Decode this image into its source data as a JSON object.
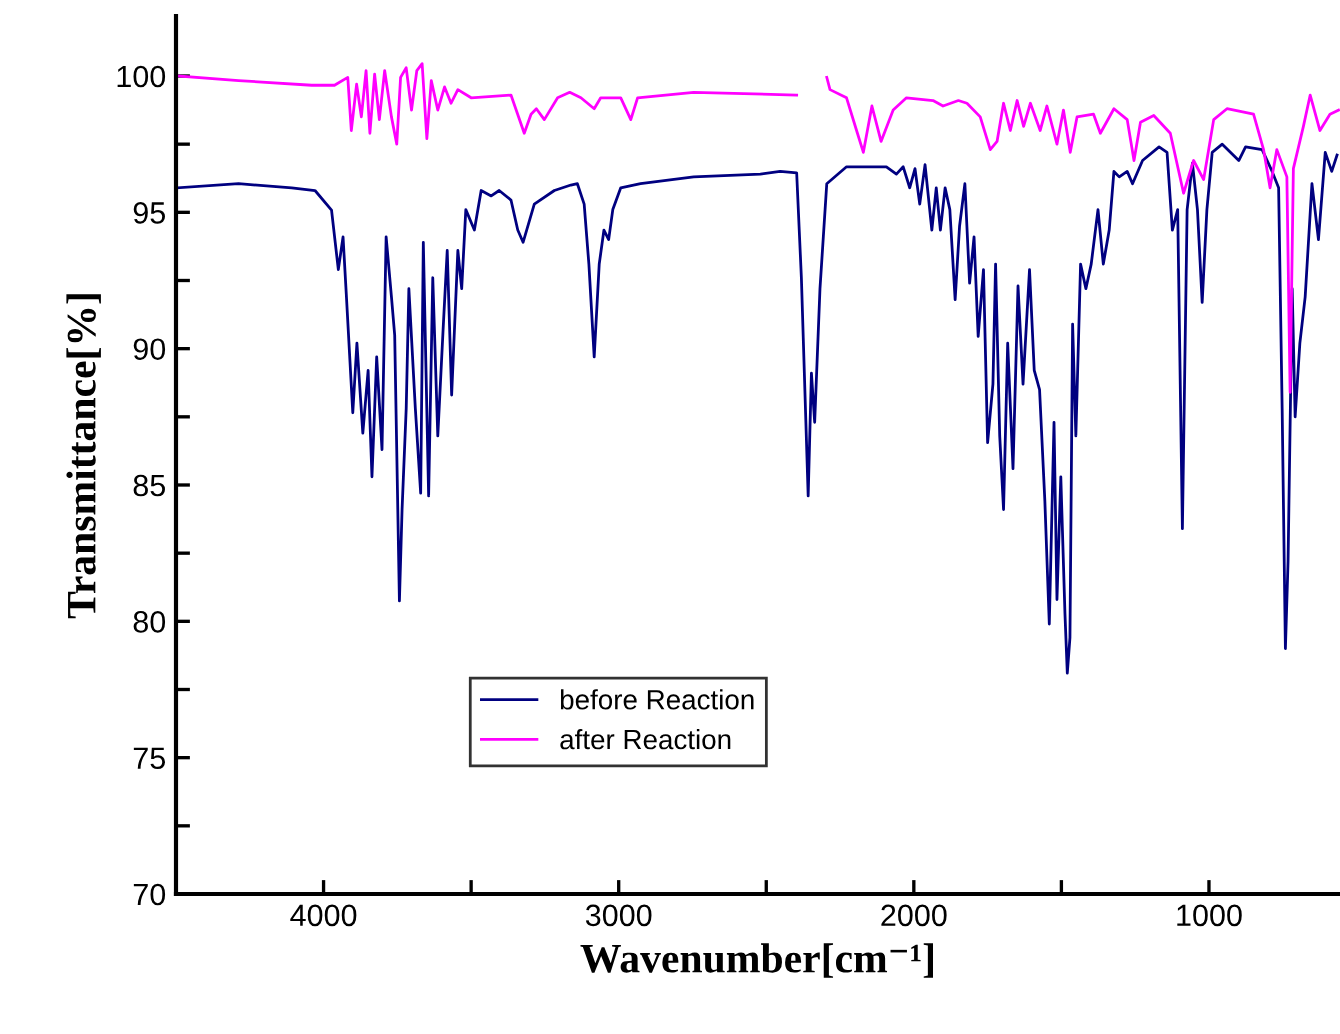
{
  "chart_data": {
    "type": "line",
    "xlabel": "Wavenumber[cm⁻¹]",
    "ylabel": "Transmittance[%]",
    "xlim": [
      4500,
      556
    ],
    "ylim": [
      70,
      102.2
    ],
    "xticks": [
      4000,
      {
        "value": 3500,
        "label": null
      },
      3000,
      {
        "value": 2500,
        "label": null
      },
      2000,
      {
        "value": 1500,
        "label": null
      },
      1000
    ],
    "yticks": [
      70,
      {
        "value": 72.5,
        "label": null
      },
      75,
      {
        "value": 77.5,
        "label": null
      },
      80,
      {
        "value": 82.5,
        "label": null
      },
      85,
      {
        "value": 87.5,
        "label": null
      },
      90,
      {
        "value": 92.5,
        "label": null
      },
      95,
      {
        "value": 97.5,
        "label": null
      },
      100
    ],
    "grid": false,
    "legend": "bottom",
    "marker": "none",
    "line_style": "solid",
    "series": [
      {
        "name": "before Reaction",
        "color": "#000080",
        "x": [
          4495,
          4288,
          4108,
          4029,
          3973,
          3950,
          3934,
          3923,
          3901,
          3887,
          3867,
          3849,
          3836,
          3820,
          3802,
          3788,
          3770,
          3759,
          3743,
          3734,
          3720,
          3711,
          3689,
          3671,
          3662,
          3644,
          3630,
          3613,
          3595,
          3581,
          3566,
          3545,
          3532,
          3518,
          3489,
          3466,
          3432,
          3405,
          3365,
          3342,
          3324,
          3286,
          3218,
          3162,
          3140,
          3117,
          3101,
          3083,
          3066,
          3050,
          3034,
          3020,
          2993,
          2926,
          2746,
          2520,
          2453,
          2397,
          2381,
          2358,
          2347,
          2336,
          2318,
          2295,
          2228,
          2093,
          2059,
          2036,
          2014,
          1996,
          1980,
          1962,
          1939,
          1924,
          1910,
          1894,
          1878,
          1860,
          1845,
          1827,
          1811,
          1796,
          1782,
          1764,
          1750,
          1732,
          1723,
          1709,
          1696,
          1682,
          1664,
          1647,
          1630,
          1608,
          1592,
          1574,
          1556,
          1541,
          1525,
          1515,
          1502,
          1488,
          1480,
          1471,
          1462,
          1451,
          1435,
          1417,
          1399,
          1376,
          1358,
          1338,
          1322,
          1304,
          1277,
          1259,
          1225,
          1169,
          1142,
          1124,
          1106,
          1090,
          1074,
          1056,
          1039,
          1023,
          1007,
          989,
          955,
          899,
          876,
          820,
          786,
          764,
          752,
          741,
          732,
          718,
          708,
          692,
          674,
          651,
          629,
          606,
          584,
          566
        ],
        "values": [
          95.9,
          96.05,
          95.9,
          95.8,
          95.08,
          92.9,
          94.1,
          92.0,
          87.65,
          90.2,
          86.9,
          89.2,
          85.3,
          89.7,
          86.3,
          94.1,
          91.9,
          90.5,
          80.75,
          84.1,
          87.8,
          92.2,
          87.8,
          84.7,
          93.9,
          84.6,
          92.6,
          86.8,
          90.7,
          93.6,
          88.3,
          93.6,
          92.2,
          95.1,
          94.35,
          95.8,
          95.6,
          95.8,
          95.45,
          94.35,
          93.9,
          95.3,
          95.8,
          96.0,
          96.05,
          95.3,
          93.1,
          89.7,
          93.1,
          94.35,
          94.0,
          95.1,
          95.9,
          96.05,
          96.3,
          96.4,
          96.5,
          96.45,
          92.6,
          84.6,
          89.1,
          87.3,
          92.2,
          96.05,
          96.67,
          96.67,
          96.4,
          96.67,
          95.9,
          96.6,
          95.3,
          96.75,
          94.35,
          95.9,
          94.35,
          95.9,
          95.1,
          91.8,
          94.5,
          96.05,
          92.4,
          94.1,
          90.45,
          92.9,
          86.55,
          88.7,
          93.1,
          86.8,
          84.1,
          90.2,
          85.6,
          92.3,
          88.7,
          92.9,
          89.2,
          88.5,
          84.4,
          79.9,
          87.3,
          80.8,
          85.3,
          80.3,
          78.1,
          79.4,
          90.9,
          86.8,
          93.1,
          92.2,
          93.1,
          95.1,
          93.1,
          94.35,
          96.5,
          96.3,
          96.5,
          96.05,
          96.9,
          97.4,
          97.2,
          94.35,
          95.1,
          83.4,
          95.1,
          96.8,
          95.1,
          91.7,
          95.1,
          97.2,
          97.5,
          96.9,
          97.4,
          97.3,
          96.5,
          95.9,
          87.8,
          79.0,
          82.2,
          92.2,
          87.5,
          90.2,
          91.9,
          96.05,
          94.0,
          97.2,
          96.5,
          97.1
        ]
      },
      {
        "name": "after Reaction",
        "color": "#ff00ff",
        "x": [
          4495,
          4288,
          4040,
          3963,
          3918,
          3906,
          3888,
          3872,
          3856,
          3843,
          3827,
          3811,
          3793,
          3770,
          3752,
          3739,
          3720,
          3702,
          3684,
          3666,
          3650,
          3635,
          3613,
          3590,
          3568,
          3545,
          3500,
          3365,
          3320,
          3297,
          3279,
          3252,
          3207,
          3166,
          3128,
          3083,
          3061,
          2993,
          2959,
          2936,
          2746,
          2397,
          2381,
          2315,
          2295,
          2284,
          2228,
          2194,
          2171,
          2142,
          2111,
          2070,
          2025,
          1935,
          1901,
          1849,
          1820,
          1775,
          1741,
          1718,
          1696,
          1673,
          1650,
          1628,
          1605,
          1572,
          1549,
          1515,
          1493,
          1470,
          1447,
          1391,
          1368,
          1322,
          1277,
          1254,
          1232,
          1187,
          1131,
          1086,
          1052,
          1018,
          984,
          939,
          849,
          815,
          793,
          770,
          736,
          725,
          714,
          680,
          657,
          624,
          590,
          561
        ],
        "values": [
          100.0,
          99.83,
          99.66,
          99.66,
          99.95,
          98.0,
          99.7,
          98.5,
          100.2,
          97.9,
          100.07,
          98.4,
          100.2,
          98.5,
          97.5,
          99.95,
          100.3,
          98.75,
          100.2,
          100.45,
          97.7,
          99.83,
          98.75,
          99.6,
          99.0,
          99.5,
          99.2,
          99.3,
          97.9,
          98.6,
          98.8,
          98.4,
          99.2,
          99.4,
          99.2,
          98.8,
          99.2,
          99.2,
          98.4,
          99.2,
          99.4,
          99.3,
          null,
          null,
          99.95,
          99.5,
          99.2,
          98.0,
          97.2,
          98.9,
          97.6,
          98.75,
          99.2,
          99.1,
          98.9,
          99.1,
          99.0,
          98.5,
          97.3,
          97.6,
          99.0,
          98.0,
          99.1,
          98.15,
          99.0,
          98.0,
          98.9,
          97.5,
          98.75,
          97.2,
          98.5,
          98.6,
          97.9,
          98.8,
          98.4,
          96.9,
          98.3,
          98.55,
          97.9,
          95.7,
          96.9,
          96.2,
          98.4,
          98.8,
          98.6,
          97.3,
          95.9,
          97.3,
          96.3,
          88.4,
          96.6,
          98.15,
          99.3,
          98.0,
          98.6,
          98.75
        ]
      }
    ]
  }
}
